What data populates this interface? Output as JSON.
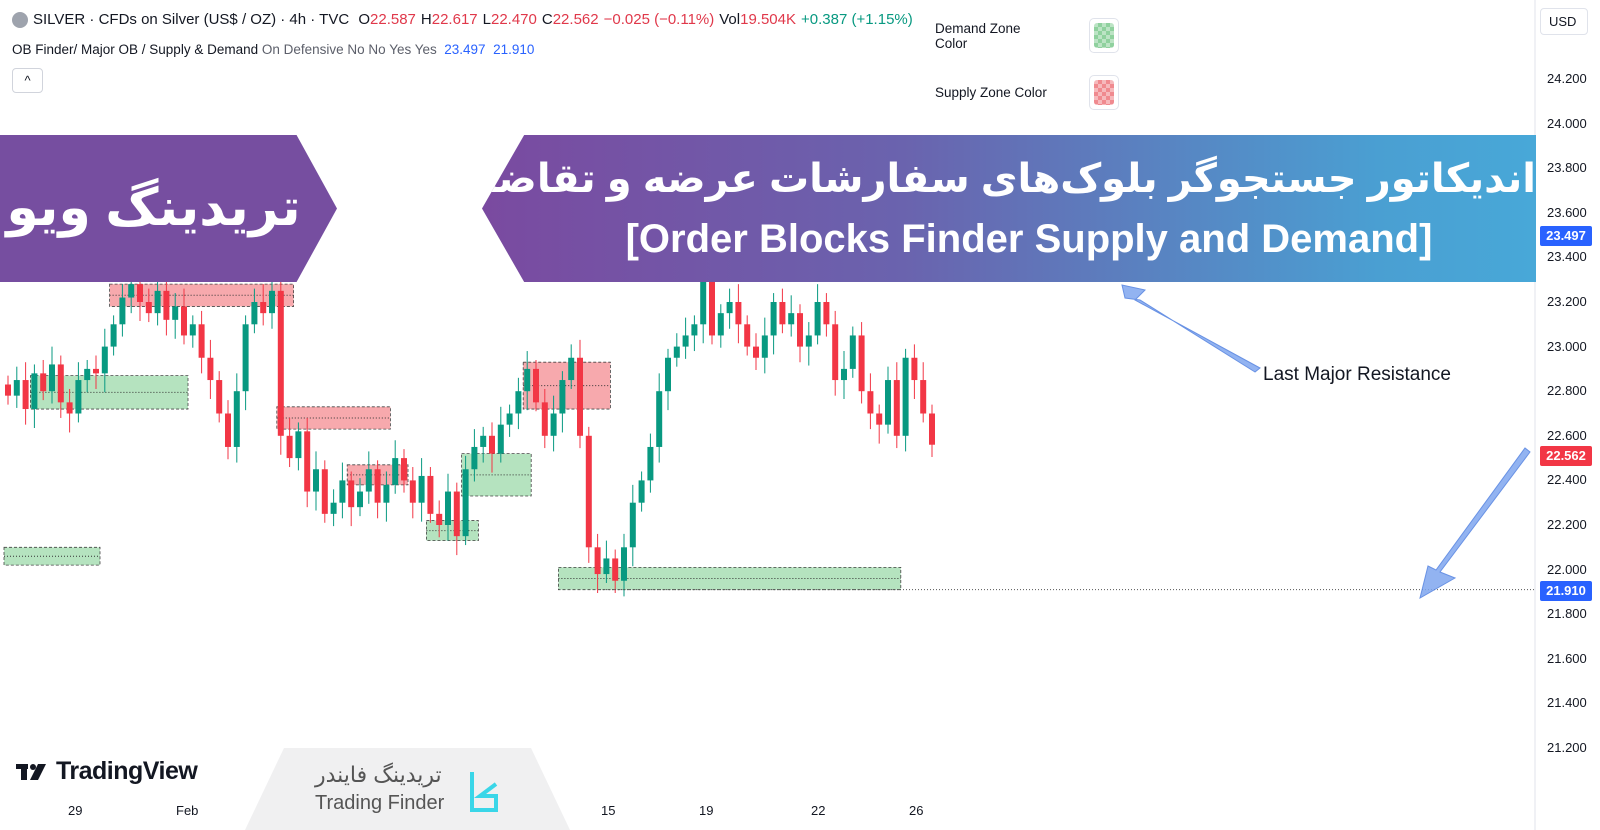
{
  "header": {
    "symbol": "SILVER · CFDs on Silver (US$ / OZ) · 4h · TVC",
    "o_label": "O",
    "o": "22.587",
    "h_label": "H",
    "h": "22.617",
    "l_label": "L",
    "l": "22.470",
    "c_label": "C",
    "c": "22.562",
    "change": "−0.025 (−0.11%)",
    "vol_label": "Vol",
    "vol": "19.504K",
    "vol_change": "+0.387 (+1.15%)"
  },
  "indicator": {
    "name": "OB Finder/ Major OB / Supply & Demand",
    "params": "On Defensive No No Yes Yes",
    "v1": "23.497",
    "v2": "21.910",
    "collapse": "^"
  },
  "legend": {
    "demand_label": "Demand Zone Color",
    "supply_label": "Supply Zone Color",
    "demand_color": "#8fd19e",
    "supply_color": "#f08a8f"
  },
  "price_axis": {
    "currency": "USD",
    "ticks": [
      "24.200",
      "24.000",
      "23.800",
      "23.600",
      "23.400",
      "23.200",
      "23.000",
      "22.800",
      "22.600",
      "22.400",
      "22.200",
      "22.000",
      "21.800",
      "21.600",
      "21.400",
      "21.200"
    ],
    "last_price": "22.562",
    "last_color": "#f23645",
    "level_23497": "23.497",
    "level_21910": "21.910",
    "level_color": "#2962ff"
  },
  "time_axis": [
    "29",
    "Feb",
    "15",
    "19",
    "22",
    "26"
  ],
  "banner": {
    "left": "تریدینگ ویو",
    "title_fa": "اندیکاتور جستجوگر بلوک‌های سفارشات عرضه و تقاضا",
    "title_en": "[Order Blocks Finder Supply and Demand]"
  },
  "annotation": "Last Major Resistance",
  "branding": {
    "tradingview": "TradingView",
    "tf_fa": "تریدینگ فایندر",
    "tf_en": "Trading Finder"
  },
  "chart_data": {
    "type": "candlestick",
    "closes": [
      22.78,
      22.85,
      22.72,
      22.88,
      22.8,
      22.92,
      22.75,
      22.7,
      22.85,
      22.9,
      22.88,
      23.0,
      23.1,
      23.22,
      23.28,
      23.2,
      23.15,
      23.25,
      23.12,
      23.18,
      23.05,
      23.1,
      22.95,
      22.85,
      22.7,
      22.55,
      22.8,
      23.1,
      23.2,
      23.15,
      23.25,
      22.6,
      22.5,
      22.62,
      22.35,
      22.45,
      22.25,
      22.3,
      22.4,
      22.28,
      22.35,
      22.45,
      22.3,
      22.38,
      22.5,
      22.4,
      22.3,
      22.42,
      22.25,
      22.2,
      22.35,
      22.15,
      22.45,
      22.55,
      22.6,
      22.52,
      22.65,
      22.7,
      22.8,
      22.9,
      22.75,
      22.6,
      22.7,
      22.85,
      22.95,
      22.6,
      22.1,
      21.98,
      22.05,
      21.95,
      22.1,
      22.3,
      22.4,
      22.55,
      22.8,
      22.95,
      23.0,
      23.05,
      23.1,
      23.45,
      23.05,
      23.15,
      23.2,
      23.1,
      23.0,
      22.95,
      23.05,
      23.2,
      23.1,
      23.15,
      23.0,
      23.05,
      23.2,
      23.1,
      22.85,
      22.9,
      23.05,
      22.8,
      22.7,
      22.65,
      22.85,
      22.6,
      22.95,
      22.85,
      22.7,
      22.56
    ],
    "zones": [
      {
        "kind": "supply",
        "from": 12,
        "to": 32,
        "top": 23.28,
        "bottom": 23.18
      },
      {
        "kind": "demand",
        "from": 3,
        "to": 20,
        "top": 22.87,
        "bottom": 22.72
      },
      {
        "kind": "supply",
        "from": 31,
        "to": 43,
        "top": 22.73,
        "bottom": 22.63
      },
      {
        "kind": "supply",
        "from": 39,
        "to": 45,
        "top": 22.47,
        "bottom": 22.38
      },
      {
        "kind": "demand",
        "from": 48,
        "to": 53,
        "top": 22.22,
        "bottom": 22.13
      },
      {
        "kind": "supply",
        "from": 59,
        "to": 68,
        "top": 22.93,
        "bottom": 22.72
      },
      {
        "kind": "demand",
        "from": 52,
        "to": 59,
        "top": 22.52,
        "bottom": 22.33
      },
      {
        "kind": "demand",
        "from": 63,
        "to": 101,
        "top": 22.01,
        "bottom": 21.91
      },
      {
        "kind": "demand",
        "from": 0,
        "to": 10,
        "top": 22.1,
        "bottom": 22.02
      }
    ],
    "up_color": "#089981",
    "down_color": "#f23645"
  }
}
